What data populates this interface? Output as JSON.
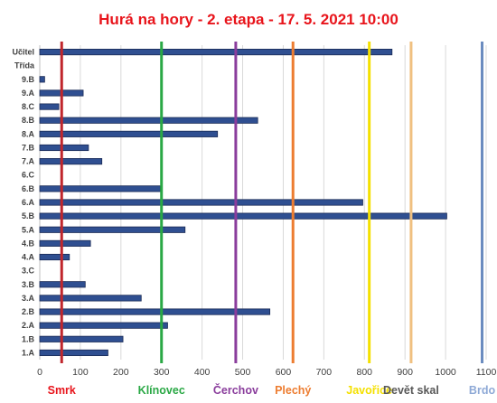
{
  "chart_data": {
    "type": "bar",
    "orientation": "horizontal",
    "title": "Hurá na hory - 2. etapa - 17. 5. 2021 10:00",
    "title_color": "#e8141b",
    "bar_color": "#2f4f91",
    "bar_edge_color": "#1a2a55",
    "grid": true,
    "xlim": [
      0,
      1100
    ],
    "x_ticks": [
      "0",
      "100",
      "200",
      "300",
      "400",
      "500",
      "600",
      "700",
      "800",
      "900",
      "1000",
      "1100"
    ],
    "categories": [
      "Učitel",
      "Třída",
      "9.B",
      "9.A",
      "8.C",
      "8.B",
      "8.A",
      "7.B",
      "7.A",
      "6.C",
      "6.B",
      "6.A",
      "5.B",
      "5.A",
      "4.B",
      "4.A",
      "3.C",
      "3.B",
      "3.A",
      "2.B",
      "2.A",
      "1.B",
      "1.A"
    ],
    "values": [
      868,
      null,
      12,
      107,
      47,
      537,
      438,
      120,
      153,
      0,
      297,
      796,
      1003,
      358,
      125,
      73,
      0,
      112,
      250,
      567,
      315,
      205,
      168
    ],
    "reference_lines": [
      {
        "label": "Smrk",
        "value": 54,
        "color": "#c0262c"
      },
      {
        "label": "Klínovec",
        "value": 300,
        "color": "#2aa845"
      },
      {
        "label": "Čerchov",
        "value": 483,
        "color": "#8a3d9c"
      },
      {
        "label": "Plechý",
        "value": 624,
        "color": "#ed7d31"
      },
      {
        "label": "Javořice",
        "value": 812,
        "color": "#f4e000"
      },
      {
        "label": "Devět skal",
        "value": 915,
        "color": "#f0c080"
      },
      {
        "label": "Brdo",
        "value": 1090,
        "color": "#6b8cbf"
      }
    ],
    "label_colors": {
      "Smrk": "#e8141b",
      "Klínovec": "#2aa845",
      "Čerchov": "#8a3d9c",
      "Plechý": "#ed7d31",
      "Javořice": "#f4e000",
      "Devět skal": "#595959",
      "Brdo": "#8ea9d6"
    }
  }
}
